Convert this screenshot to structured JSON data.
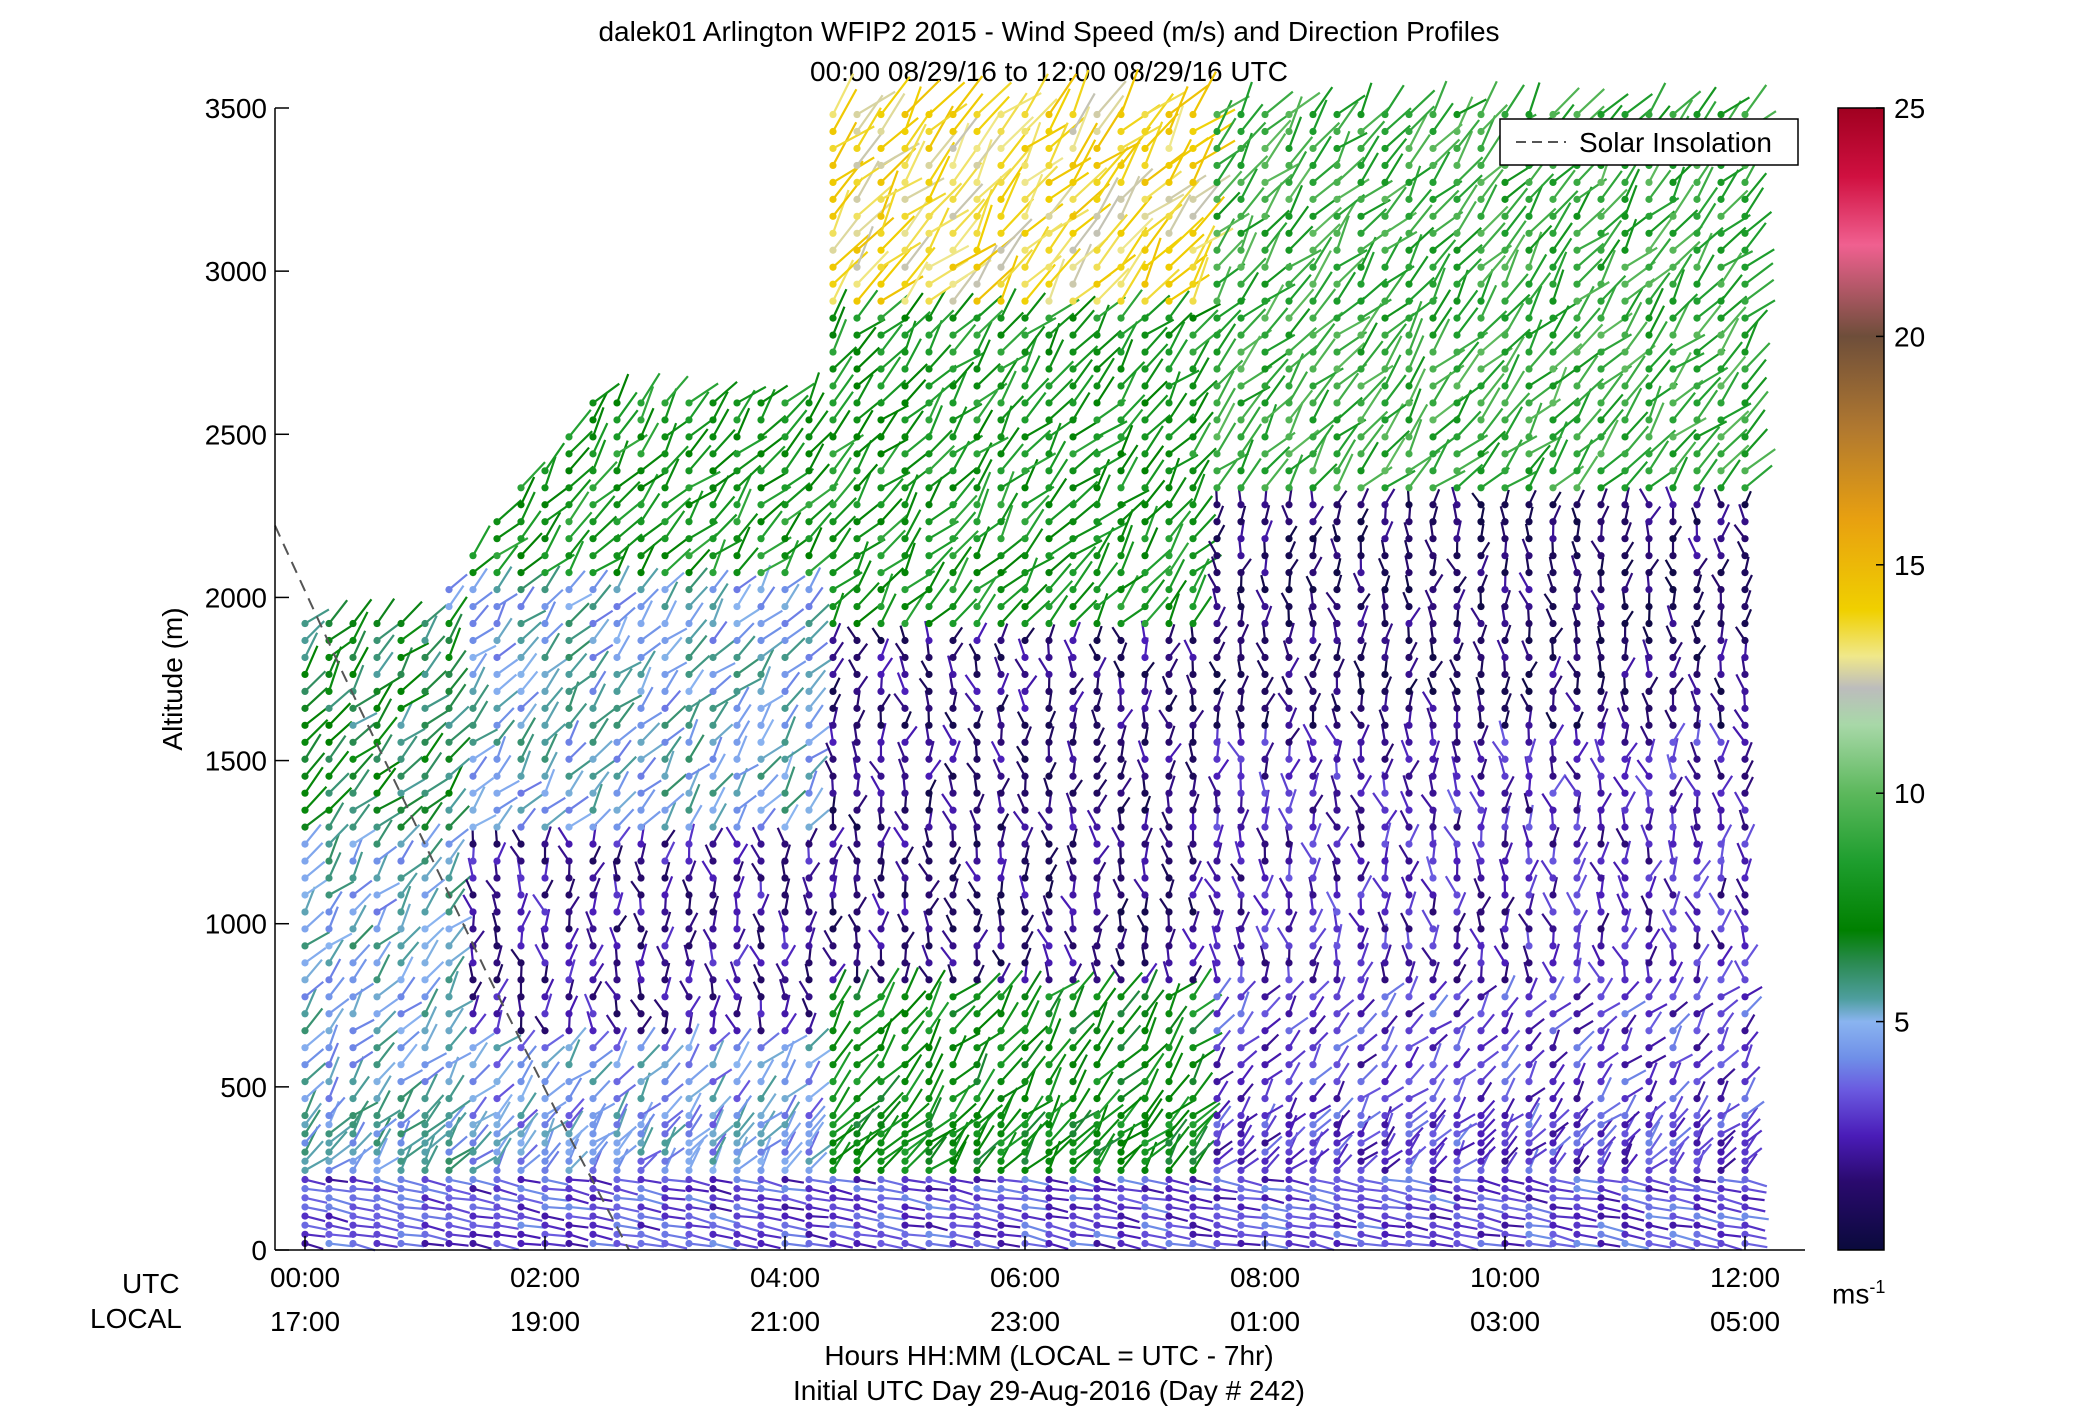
{
  "title": "dalek01 Arlington WFIP2 2015 - Wind Speed (m/s) and Direction Profiles",
  "subtitle": "00:00 08/29/16 to 12:00 08/29/16  UTC",
  "legend": {
    "label": "Solar Insolation",
    "placement": "top-right"
  },
  "bottom": {
    "utc_label": "UTC",
    "local_label": "LOCAL",
    "xlabel": "Hours HH:MM  (LOCAL = UTC - 7hr)",
    "initial_day": "Initial UTC Day 29-Aug-2016 (Day # 242)"
  },
  "colorbar": {
    "unit": "ms",
    "unit_exp": "-1",
    "ticks": [
      "5",
      "10",
      "15",
      "20",
      "25"
    ],
    "range": [
      0,
      25
    ]
  },
  "chart_data": {
    "type": "wind-barb-profile",
    "ylabel": "Altitude (m)",
    "ylim": [
      0,
      3500
    ],
    "yticks": [
      "0",
      "500",
      "1000",
      "1500",
      "2000",
      "2500",
      "3000",
      "3500"
    ],
    "xlim_hours": [
      -0.25,
      12.5
    ],
    "xticks_utc": [
      "00:00",
      "02:00",
      "04:00",
      "06:00",
      "08:00",
      "10:00",
      "12:00"
    ],
    "xticks_local": [
      "17:00",
      "19:00",
      "21:00",
      "23:00",
      "01:00",
      "03:00",
      "05:00"
    ],
    "xtick_hours": [
      0,
      2,
      4,
      6,
      8,
      10,
      12
    ],
    "solar_insolation": {
      "style": "dashed",
      "color": "#555555",
      "x": [
        -0.25,
        0.3,
        0.9,
        1.5,
        2.1,
        2.7
      ],
      "y": [
        2220,
        1780,
        1320,
        860,
        420,
        0
      ]
    },
    "speed_zones_mps": [
      {
        "t0": 0.0,
        "t1": 12.0,
        "z0": 0,
        "z1": 230,
        "speed": 3.2
      },
      {
        "t0": 0.0,
        "t1": 1.2,
        "z0": 230,
        "z1": 1250,
        "speed": 5.0
      },
      {
        "t0": 0.0,
        "t1": 1.2,
        "z0": 1250,
        "z1": 1950,
        "speed": 6.5
      },
      {
        "t0": 1.2,
        "t1": 4.3,
        "z0": 230,
        "z1": 650,
        "speed": 4.5
      },
      {
        "t0": 1.2,
        "t1": 4.3,
        "z0": 650,
        "z1": 1250,
        "speed": 2.0
      },
      {
        "t0": 1.2,
        "t1": 4.3,
        "z0": 1250,
        "z1": 2050,
        "speed": 5.0
      },
      {
        "t0": 1.2,
        "t1": 4.3,
        "z0": 2050,
        "z1": 2600,
        "speed": 8.0
      },
      {
        "t0": 4.3,
        "t1": 7.5,
        "z0": 230,
        "z1": 800,
        "speed": 7.5
      },
      {
        "t0": 4.3,
        "t1": 7.5,
        "z0": 800,
        "z1": 1900,
        "speed": 1.5
      },
      {
        "t0": 4.3,
        "t1": 7.5,
        "z0": 1900,
        "z1": 2900,
        "speed": 8.0
      },
      {
        "t0": 4.3,
        "t1": 7.5,
        "z0": 2900,
        "z1": 3500,
        "speed": 13.5
      },
      {
        "t0": 7.5,
        "t1": 12.0,
        "z0": 230,
        "z1": 800,
        "speed": 3.0
      },
      {
        "t0": 7.5,
        "t1": 12.0,
        "z0": 800,
        "z1": 1600,
        "speed": 2.5
      },
      {
        "t0": 7.5,
        "t1": 12.0,
        "z0": 1600,
        "z1": 2300,
        "speed": 1.2
      },
      {
        "t0": 7.5,
        "t1": 12.0,
        "z0": 2300,
        "z1": 3500,
        "speed": 9.0
      }
    ],
    "colormap": [
      [
        0,
        "#0a0a3c"
      ],
      [
        1.5,
        "#2a0a6e"
      ],
      [
        2.5,
        "#4a1cb8"
      ],
      [
        3.5,
        "#6a5ae0"
      ],
      [
        4.2,
        "#6f8fe8"
      ],
      [
        5,
        "#8ab4f0"
      ],
      [
        5.5,
        "#4e9e9e"
      ],
      [
        6.3,
        "#2a8a50"
      ],
      [
        7,
        "#008000"
      ],
      [
        8.5,
        "#1e9e2e"
      ],
      [
        10,
        "#5cb85c"
      ],
      [
        11.5,
        "#a8d8a8"
      ],
      [
        12.3,
        "#bcbcbc"
      ],
      [
        13,
        "#f0e88a"
      ],
      [
        14,
        "#f0d000"
      ],
      [
        16,
        "#e8a010"
      ],
      [
        18,
        "#b07830"
      ],
      [
        20,
        "#6e4e3a"
      ],
      [
        22,
        "#f06090"
      ],
      [
        23.5,
        "#d01040"
      ],
      [
        25,
        "#a00020"
      ]
    ]
  }
}
